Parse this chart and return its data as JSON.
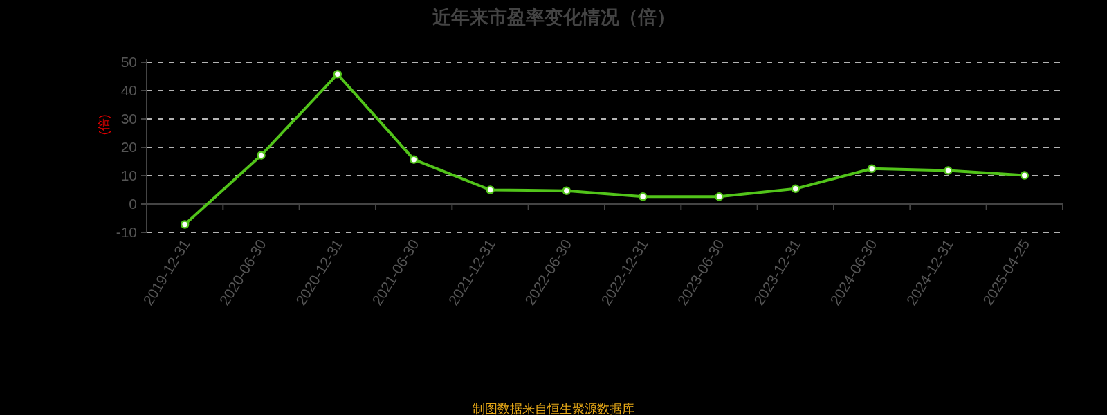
{
  "chart_data": {
    "type": "line",
    "title": "近年来市盈率变化情况（倍）",
    "ylabel": "(倍)",
    "categories": [
      "2019-12-31",
      "2020-06-30",
      "2020-12-31",
      "2021-06-30",
      "2021-12-31",
      "2022-06-30",
      "2022-12-31",
      "2023-06-30",
      "2023-12-31",
      "2024-06-30",
      "2024-12-31",
      "2025-04-25"
    ],
    "series": [
      {
        "color": "#52c41a",
        "values": [
          -7.2,
          17.2,
          45.8,
          15.7,
          5.0,
          4.7,
          2.6,
          2.6,
          5.4,
          12.5,
          11.8,
          10.1
        ]
      }
    ],
    "ylim": [
      -10,
      50
    ],
    "yticks": [
      -10,
      0,
      10,
      20,
      30,
      40,
      50
    ],
    "grid": "y",
    "marker": "circle",
    "line_style": "solid",
    "annotations": [
      "制图数据来自恒生聚源数据库"
    ]
  }
}
